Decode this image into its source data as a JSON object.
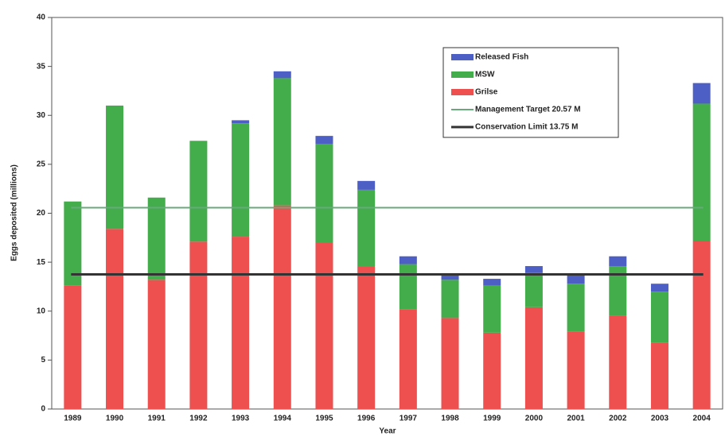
{
  "chart_data": {
    "type": "stacked_bar",
    "ylabel": "Eggs deposited (millions)",
    "xlabel": "Year",
    "categories": [
      "1989",
      "1990",
      "1991",
      "1992",
      "1993",
      "1994",
      "1995",
      "1996",
      "1997",
      "1998",
      "1999",
      "2000",
      "2001",
      "2002",
      "2003",
      "2004"
    ],
    "series": [
      {
        "name": "Released Fish",
        "color": "#4d5fc4",
        "values": [
          0,
          0,
          0,
          0,
          0.3,
          0.7,
          0.8,
          0.9,
          0.8,
          0.5,
          0.7,
          0.7,
          0.9,
          1.0,
          0.8,
          2.1
        ]
      },
      {
        "name": "MSW",
        "color": "#43ad4c",
        "values": [
          8.6,
          12.6,
          8.4,
          10.3,
          11.6,
          13.0,
          10.1,
          7.8,
          4.6,
          3.9,
          4.8,
          3.5,
          4.9,
          5.1,
          5.2,
          14.0
        ]
      },
      {
        "name": "Grilse",
        "color": "#ee4f4f",
        "values": [
          12.6,
          18.4,
          13.2,
          17.1,
          17.6,
          20.8,
          17.0,
          14.6,
          10.2,
          9.3,
          7.8,
          10.4,
          7.9,
          9.5,
          6.8,
          17.2
        ]
      }
    ],
    "lines": [
      {
        "name": "Management Target 20.57 M",
        "color": "#6aa97c",
        "value": 20.57
      },
      {
        "name": "Conservation Limit 13.75 M",
        "color": "#333333",
        "value": 13.75
      }
    ],
    "ylim": [
      0,
      40
    ],
    "yticks": [
      0,
      5,
      10,
      15,
      20,
      25,
      30,
      35,
      40
    ]
  }
}
